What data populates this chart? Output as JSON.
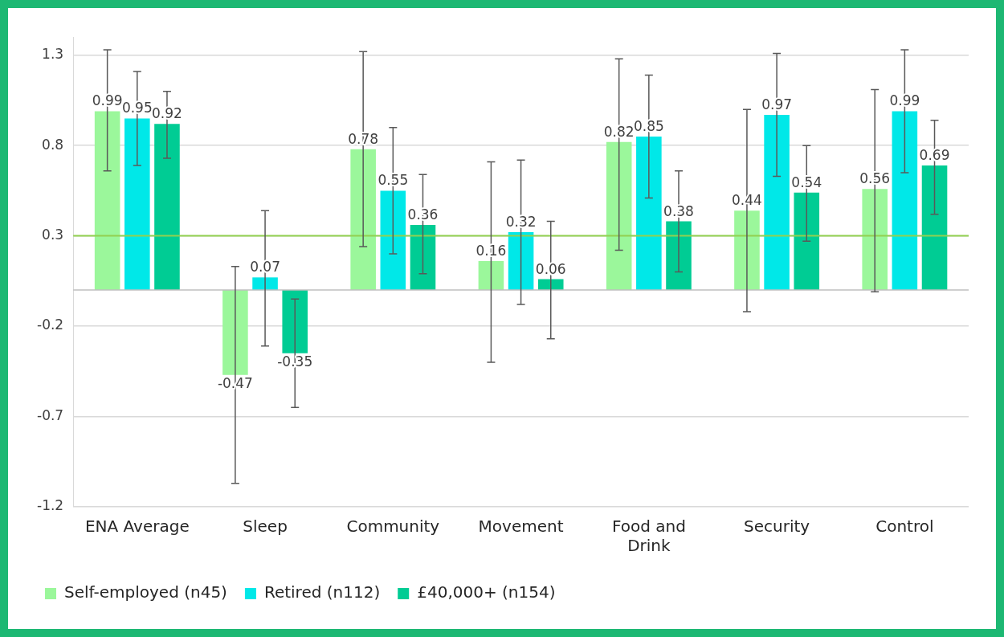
{
  "chart_data": {
    "type": "bar",
    "categories": [
      "ENA Average",
      "Sleep",
      "Community",
      "Movement",
      "Food and Drink",
      "Security",
      "Control"
    ],
    "series": [
      {
        "name": "Self-employed (n45)",
        "color": "#9bf79b",
        "values": [
          0.99,
          -0.47,
          0.78,
          0.16,
          0.82,
          0.44,
          0.56
        ],
        "errors": [
          [
            0.66,
            1.33
          ],
          [
            -1.07,
            0.13
          ],
          [
            0.24,
            1.32
          ],
          [
            -0.4,
            0.71
          ],
          [
            0.22,
            1.28
          ],
          [
            -0.12,
            1.0
          ],
          [
            -0.01,
            1.11
          ]
        ]
      },
      {
        "name": "Retired (n112)",
        "color": "#00e8e8",
        "values": [
          0.95,
          0.07,
          0.55,
          0.32,
          0.85,
          0.97,
          0.99
        ],
        "errors": [
          [
            0.69,
            1.21
          ],
          [
            -0.31,
            0.44
          ],
          [
            0.2,
            0.9
          ],
          [
            -0.08,
            0.72
          ],
          [
            0.51,
            1.19
          ],
          [
            0.63,
            1.31
          ],
          [
            0.65,
            1.33
          ]
        ]
      },
      {
        "name": "£40,000+ (n154)",
        "color": "#00cc94",
        "values": [
          0.92,
          -0.35,
          0.36,
          0.06,
          0.38,
          0.54,
          0.69
        ],
        "errors": [
          [
            0.73,
            1.1
          ],
          [
            -0.65,
            -0.05
          ],
          [
            0.09,
            0.64
          ],
          [
            -0.27,
            0.38
          ],
          [
            0.1,
            0.66
          ],
          [
            0.27,
            0.8
          ],
          [
            0.42,
            0.94
          ]
        ]
      }
    ],
    "ylim": [
      -1.2,
      1.4
    ],
    "yticks": [
      -1.2,
      -0.7,
      -0.2,
      0.3,
      0.8,
      1.3
    ],
    "grid": "y",
    "legend": "bottom left",
    "data_labels": true,
    "ref_lines": [
      {
        "axis": "y",
        "value": 0.3,
        "color": "#92d050"
      }
    ]
  }
}
